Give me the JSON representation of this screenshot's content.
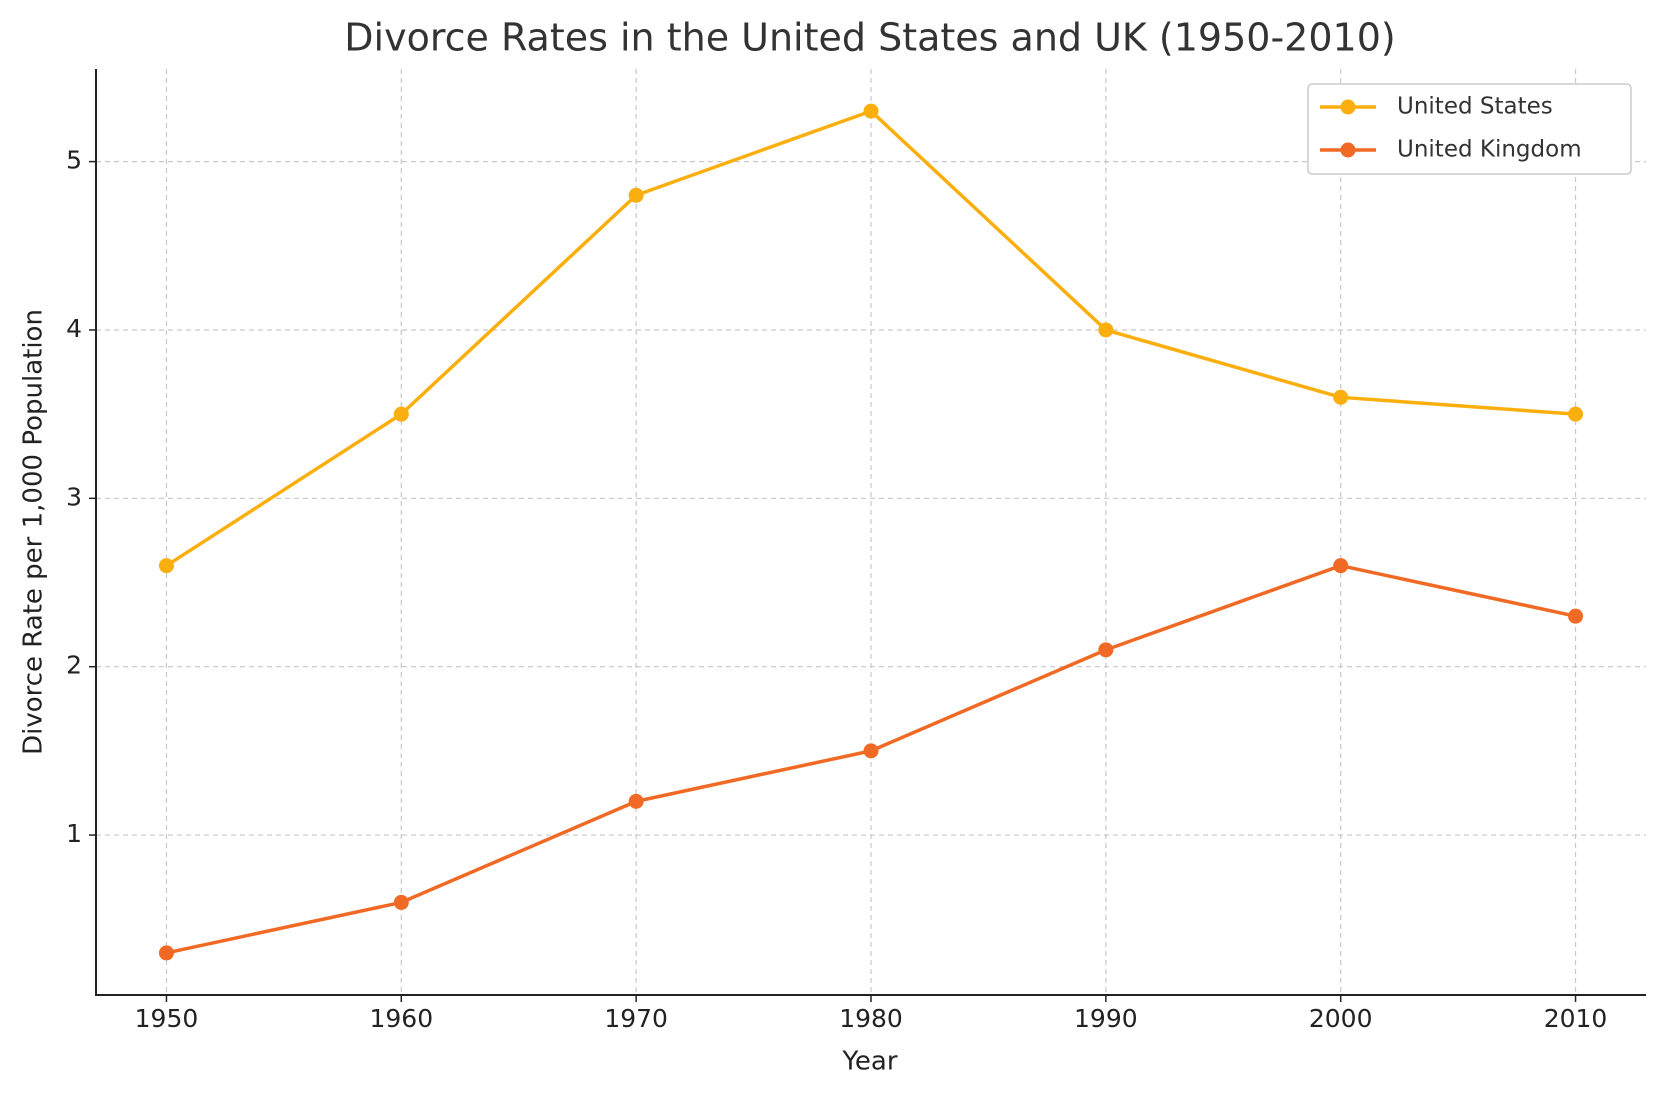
{
  "chart_data": {
    "type": "line",
    "title": "Divorce Rates in the United States and UK (1950-2010)",
    "x_label": "Year",
    "y_label": "Divorce Rate per 1,000 Population",
    "x": [
      1950,
      1960,
      1970,
      1980,
      1990,
      2000,
      2010
    ],
    "series": [
      {
        "name": "United States",
        "color": "#fbaf0e",
        "values": [
          2.6,
          3.5,
          4.8,
          5.3,
          4.0,
          3.6,
          3.5
        ]
      },
      {
        "name": "United Kingdom",
        "color": "#f06a25",
        "values": [
          0.3,
          0.6,
          1.2,
          1.5,
          2.1,
          2.6,
          2.3
        ]
      }
    ],
    "xlim": [
      1947,
      2013
    ],
    "xticks": [
      1950,
      1960,
      1970,
      1980,
      1990,
      2000,
      2010
    ],
    "ylim": [
      0.05,
      5.55
    ],
    "yticks": [
      1,
      2,
      3,
      4,
      5
    ],
    "grid": true,
    "legend": "upper right"
  }
}
